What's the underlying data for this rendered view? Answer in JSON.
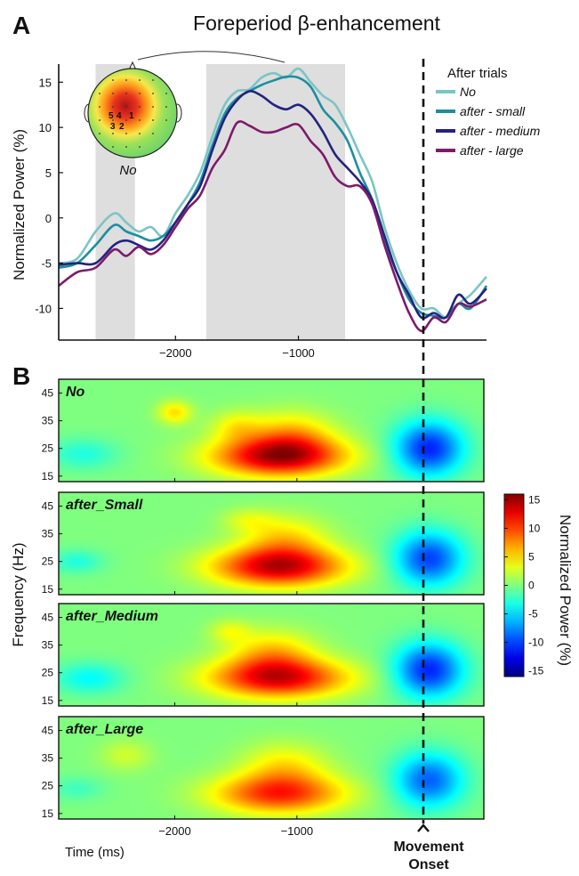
{
  "panel_a_letter": "A",
  "panel_b_letter": "B",
  "chart_data": [
    {
      "type": "line",
      "title": "Foreperiod β-enhancement",
      "xlabel": "",
      "ylabel": "Normalized Power (%)",
      "xlim": [
        -2950,
        530
      ],
      "ylim": [
        -13.5,
        17
      ],
      "x_ticks": [
        -2000,
        -1000
      ],
      "y_ticks": [
        -10,
        -5,
        0,
        5,
        10,
        15
      ],
      "legend_title": "After trials",
      "legend_position": "top-right",
      "shaded_intervals": [
        [
          -2650,
          -2330
        ],
        [
          -1750,
          -620
        ]
      ],
      "vline_x": 0,
      "topomap_label": "No",
      "topomap_electrodes": [
        "5",
        "4",
        "1",
        "3",
        "2"
      ],
      "colors": {
        "No": "#7cc4c4",
        "after - small": "#1b8fa0",
        "after - medium": "#24237f",
        "after - large": "#7d1a6c"
      },
      "x": [
        -2950,
        -2800,
        -2650,
        -2500,
        -2400,
        -2300,
        -2200,
        -2100,
        -2000,
        -1900,
        -1800,
        -1700,
        -1600,
        -1500,
        -1400,
        -1300,
        -1200,
        -1100,
        -1000,
        -900,
        -800,
        -700,
        -600,
        -500,
        -400,
        -300,
        -200,
        -100,
        0,
        100,
        200,
        300,
        400,
        530
      ],
      "series": [
        {
          "name": "No",
          "values": [
            -5.0,
            -4.5,
            -1.5,
            0.5,
            -0.5,
            -1.5,
            -1.0,
            -2.0,
            0.5,
            2.5,
            5.0,
            9.0,
            12.5,
            14.0,
            14.2,
            15.5,
            16.0,
            15.5,
            16.5,
            15.0,
            13.5,
            12.5,
            10.0,
            7.0,
            4.0,
            -1.0,
            -5.0,
            -8.0,
            -10.0,
            -10.0,
            -11.0,
            -9.5,
            -8.5,
            -6.5
          ]
        },
        {
          "name": "after - small",
          "values": [
            -5.5,
            -5.0,
            -3.0,
            -0.8,
            -1.5,
            -2.0,
            -2.5,
            -2.0,
            -0.5,
            1.5,
            4.0,
            8.0,
            11.5,
            13.2,
            14.0,
            14.7,
            15.2,
            15.6,
            15.5,
            14.5,
            12.0,
            10.5,
            8.5,
            5.0,
            2.0,
            -2.5,
            -6.0,
            -9.0,
            -10.5,
            -10.8,
            -11.0,
            -9.5,
            -10.0,
            -7.5
          ]
        },
        {
          "name": "after - medium",
          "values": [
            -5.2,
            -5.0,
            -5.0,
            -3.0,
            -2.5,
            -3.0,
            -3.5,
            -2.5,
            -0.5,
            1.5,
            3.5,
            7.5,
            11.0,
            13.0,
            14.0,
            13.5,
            12.5,
            12.0,
            12.5,
            11.5,
            9.5,
            7.0,
            5.5,
            4.0,
            2.0,
            -2.0,
            -6.0,
            -8.5,
            -11.0,
            -10.5,
            -11.0,
            -8.5,
            -9.5,
            -7.8
          ]
        },
        {
          "name": "after - large",
          "values": [
            -7.5,
            -6.0,
            -5.5,
            -3.5,
            -4.2,
            -3.2,
            -4.0,
            -3.0,
            -1.0,
            1.0,
            2.5,
            5.5,
            7.5,
            10.5,
            10.2,
            9.5,
            9.5,
            10.0,
            10.3,
            8.5,
            7.0,
            4.5,
            3.5,
            3.5,
            1.5,
            -3.0,
            -7.0,
            -10.5,
            -12.5,
            -11.0,
            -11.5,
            -9.5,
            -9.8,
            -9.0
          ]
        }
      ]
    },
    {
      "type": "heatmap",
      "xlabel": "Time (ms)",
      "ylabel": "Frequency (Hz)",
      "xlim": [
        -2950,
        530
      ],
      "ylim": [
        13,
        50
      ],
      "x_ticks": [
        -2000,
        -1000
      ],
      "y_ticks": [
        15,
        25,
        35,
        45
      ],
      "colorbar_label": "Normalized Power (%)",
      "colorbar_ticks": [
        -15,
        -10,
        -5,
        0,
        5,
        10,
        15
      ],
      "colorbar_range": [
        -16,
        16
      ],
      "onset_label_line1": "Movement",
      "onset_label_line2": "Onset",
      "panels": [
        {
          "name": "No",
          "peak": 14.0,
          "blobs": [
            {
              "t": -1150,
              "f": 22,
              "st": 380,
              "sf": 5,
              "a": 14.0
            },
            {
              "t": -1050,
              "f": 30,
              "st": 250,
              "sf": 6,
              "a": 5.5
            },
            {
              "t": -1500,
              "f": 33,
              "st": 150,
              "sf": 4,
              "a": 3.5
            },
            {
              "t": -2000,
              "f": 38,
              "st": 100,
              "sf": 3,
              "a": 5.0
            },
            {
              "t": 80,
              "f": 25,
              "st": 200,
              "sf": 7,
              "a": -11.0
            },
            {
              "t": -2750,
              "f": 23,
              "st": 200,
              "sf": 4,
              "a": -3.0
            }
          ]
        },
        {
          "name": "after_Small",
          "peak": 13.5,
          "blobs": [
            {
              "t": -1150,
              "f": 23,
              "st": 380,
              "sf": 5,
              "a": 13.5
            },
            {
              "t": -1100,
              "f": 33,
              "st": 250,
              "sf": 6,
              "a": 5.0
            },
            {
              "t": -1400,
              "f": 40,
              "st": 150,
              "sf": 3,
              "a": 2.5
            },
            {
              "t": 80,
              "f": 26,
              "st": 200,
              "sf": 7,
              "a": -10.0
            },
            {
              "t": -2800,
              "f": 25,
              "st": 150,
              "sf": 3,
              "a": -3.0
            }
          ]
        },
        {
          "name": "after_Medium",
          "peak": 12.5,
          "blobs": [
            {
              "t": -1150,
              "f": 23,
              "st": 400,
              "sf": 5,
              "a": 12.5
            },
            {
              "t": -1200,
              "f": 32,
              "st": 250,
              "sf": 6,
              "a": 5.5
            },
            {
              "t": -1550,
              "f": 40,
              "st": 120,
              "sf": 3,
              "a": 3.0
            },
            {
              "t": 80,
              "f": 26,
              "st": 200,
              "sf": 7,
              "a": -11.0
            },
            {
              "t": -2700,
              "f": 23,
              "st": 200,
              "sf": 4,
              "a": -4.0
            }
          ]
        },
        {
          "name": "after_Large",
          "peak": 10.5,
          "blobs": [
            {
              "t": -1150,
              "f": 22,
              "st": 380,
              "sf": 5,
              "a": 10.5
            },
            {
              "t": -1100,
              "f": 32,
              "st": 250,
              "sf": 6,
              "a": 4.5
            },
            {
              "t": -2400,
              "f": 36,
              "st": 150,
              "sf": 4,
              "a": 2.5
            },
            {
              "t": 80,
              "f": 27,
              "st": 200,
              "sf": 7,
              "a": -9.0
            },
            {
              "t": -2800,
              "f": 24,
              "st": 150,
              "sf": 3,
              "a": -2.0
            }
          ]
        }
      ]
    }
  ]
}
